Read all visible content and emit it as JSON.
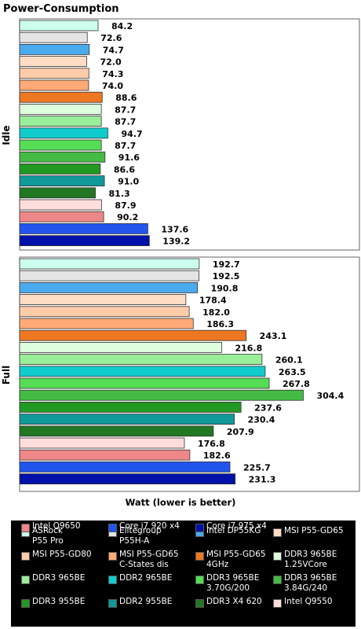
{
  "chart_data": {
    "type": "bar",
    "orientation": "horizontal",
    "title": "Power-Consumption",
    "xlabel": "Watt (lower is better)",
    "ylabel": "",
    "xlim": [
      0,
      320
    ],
    "grid": false,
    "legend_position": "bottom",
    "series": [
      {
        "name": "ASRock P55 Pro",
        "color": "#ccffee"
      },
      {
        "name": "Elitegroup P55H-A",
        "color": "#e4e4e4"
      },
      {
        "name": "Intel DP55KG",
        "color": "#4aaaee"
      },
      {
        "name": "MSI P55-GD65",
        "color": "#ffdcc4"
      },
      {
        "name": "MSI P55-GD80",
        "color": "#ffccaa"
      },
      {
        "name": "MSI P55-GD65 C-States dis",
        "color": "#ffaa77"
      },
      {
        "name": "MSI P55-GD65 4GHz",
        "color": "#ee7722"
      },
      {
        "name": "DDR3 965BE 1.25VCore",
        "color": "#ddffdd"
      },
      {
        "name": "DDR3 965BE",
        "color": "#99ee99"
      },
      {
        "name": "DDR2 965BE",
        "color": "#11cccc"
      },
      {
        "name": "DDR3 965BE 3.70G/200",
        "color": "#55dd55"
      },
      {
        "name": "DDR3 965BE 3.84G/240",
        "color": "#44bb44"
      },
      {
        "name": "DDR3 955BE",
        "color": "#229922"
      },
      {
        "name": "DDR2 955BE",
        "color": "#119999"
      },
      {
        "name": "DDR3 X4 620",
        "color": "#227722"
      },
      {
        "name": "Intel Q9550",
        "color": "#ffdddd"
      },
      {
        "name": "Intel Q9650",
        "color": "#ee8888"
      },
      {
        "name": "Core i7 920 x4",
        "color": "#2255ee"
      },
      {
        "name": "Core i7 975 x4",
        "color": "#0011aa"
      }
    ],
    "groups": [
      {
        "label": "Idle",
        "values": [
          84.2,
          72.6,
          74.7,
          72.0,
          74.3,
          74.0,
          88.6,
          87.7,
          87.7,
          94.7,
          87.7,
          91.6,
          86.6,
          91.0,
          81.3,
          87.9,
          90.2,
          137.6,
          139.2
        ]
      },
      {
        "label": "Full",
        "values": [
          192.7,
          192.5,
          190.8,
          178.4,
          182.0,
          186.3,
          243.1,
          216.8,
          260.1,
          263.5,
          267.8,
          304.4,
          237.6,
          230.4,
          207.9,
          176.8,
          182.6,
          225.7,
          231.3
        ]
      }
    ],
    "data_labels": [
      [
        "84.2",
        "72.6",
        "74.7",
        "72.0",
        "74.3",
        "74.0",
        "88.6",
        "87.7",
        "87.7",
        "94.7",
        "87.7",
        "91.6",
        "86.6",
        "91.0",
        "81.3",
        "87.9",
        "90.2",
        "137.6",
        "139.2"
      ],
      [
        "192.7",
        "192.5",
        "190.8",
        "178.4",
        "182.0",
        "186.3",
        "243.1",
        "216.8",
        "260.1",
        "263.5",
        "267.8",
        "304.4",
        "237.6",
        "230.4",
        "207.9",
        "176.8",
        "182.6",
        "225.7",
        "231.3"
      ]
    ],
    "legend_lines": [
      [
        "ASRock",
        "P55 Pro"
      ],
      [
        "Elitegroup",
        "P55H-A"
      ],
      [
        "Intel DP55KG"
      ],
      [
        "MSI P55-GD65"
      ],
      [
        "MSI P55-GD80"
      ],
      [
        "MSI P55-GD65",
        "C-States dis"
      ],
      [
        "MSI P55-GD65",
        "4GHz"
      ],
      [
        "DDR3 965BE",
        "1.25VCore"
      ],
      [
        "DDR3 965BE"
      ],
      [
        "DDR2 965BE"
      ],
      [
        "DDR3 965BE",
        "3.70G/200"
      ],
      [
        "DDR3 965BE",
        "3.84G/240"
      ],
      [
        "DDR3 955BE"
      ],
      [
        "DDR2 955BE"
      ],
      [
        "DDR3 X4 620"
      ],
      [
        "Intel Q9550"
      ],
      [
        "Intel Q9650"
      ],
      [
        "Core i7 920 x4"
      ],
      [
        "Core i7 975 x4"
      ]
    ]
  }
}
